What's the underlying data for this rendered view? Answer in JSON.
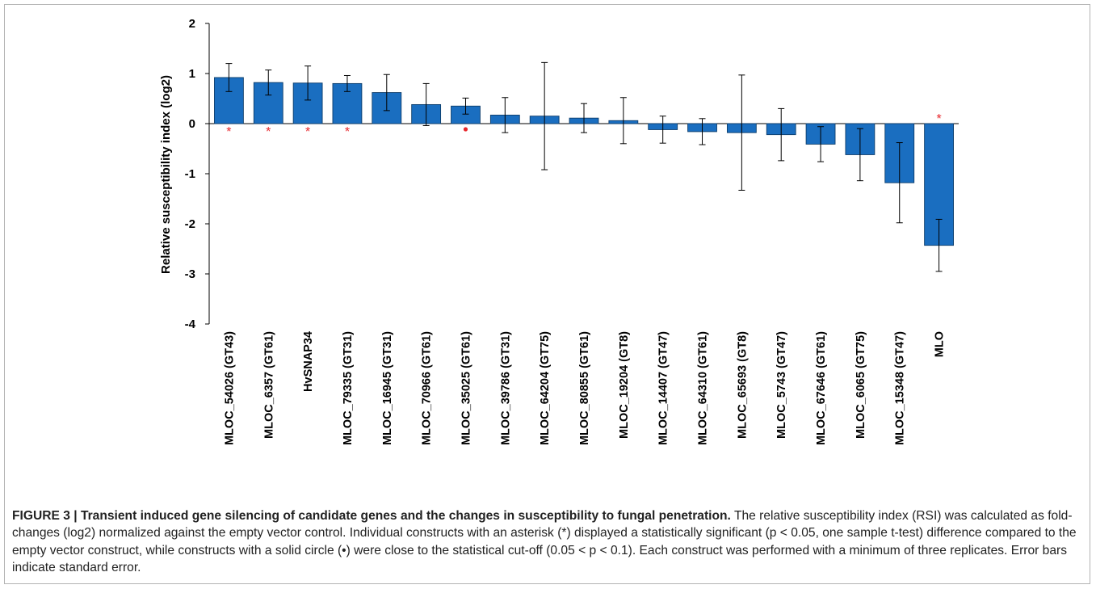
{
  "chart_data": {
    "type": "bar",
    "ylabel": "Relative susceptibility index (log2)",
    "xlabel": "",
    "title": "",
    "ylim": [
      -4,
      2
    ],
    "yticks": [
      2,
      1,
      0,
      -1,
      -2,
      -3,
      -4
    ],
    "grid": false,
    "categories": [
      "MLOC_54026 (GT43)",
      "MLOC_6357 (GT61)",
      "HvSNAP34",
      "MLOC_79335 (GT31)",
      "MLOC_16945 (GT31)",
      "MLOC_70966 (GT61)",
      "MLOC_35025 (GT61)",
      "MLOC_39786 (GT31)",
      "MLOC_64204 (GT75)",
      "MLOC_80855 (GT61)",
      "MLOC_19204 (GT8)",
      "MLOC_14407 (GT47)",
      "MLOC_64310 (GT61)",
      "MLOC_65693 (GT8)",
      "MLOC_5743 (GT47)",
      "MLOC_67646 (GT61)",
      "MLOC_6065 (GT75)",
      "MLOC_15348 (GT47)",
      "MLO"
    ],
    "values": [
      0.92,
      0.82,
      0.81,
      0.8,
      0.62,
      0.38,
      0.35,
      0.17,
      0.15,
      0.11,
      0.06,
      -0.12,
      -0.16,
      -0.18,
      -0.22,
      -0.41,
      -0.62,
      -1.18,
      -2.43
    ],
    "errors": [
      0.28,
      0.25,
      0.34,
      0.16,
      0.36,
      0.42,
      0.16,
      0.35,
      1.07,
      0.29,
      0.46,
      0.27,
      0.26,
      1.15,
      0.52,
      0.35,
      0.52,
      0.8,
      0.52
    ],
    "bar_color": "#1a6ec0",
    "marker_color": "#e8262b",
    "markers": [
      "*",
      "*",
      "*",
      "*",
      "",
      "",
      "•",
      "",
      "",
      "",
      "",
      "",
      "",
      "",
      "",
      "",
      "",
      "",
      "*"
    ]
  },
  "caption": {
    "label": "FIGURE 3 | Transient induced gene silencing of candidate genes and the changes in susceptibility to fungal penetration.",
    "text": " The relative susceptibility index (RSI) was calculated as fold-changes (log2) normalized against the empty vector control. Individual constructs with an asterisk (*) displayed a statistically significant (p < 0.05, one sample t-test) difference compared to the empty vector construct, while constructs with a solid circle (•) were close to the statistical cut-off (0.05 < p < 0.1). Each construct was performed with a minimum of three replicates. Error bars indicate standard error."
  }
}
